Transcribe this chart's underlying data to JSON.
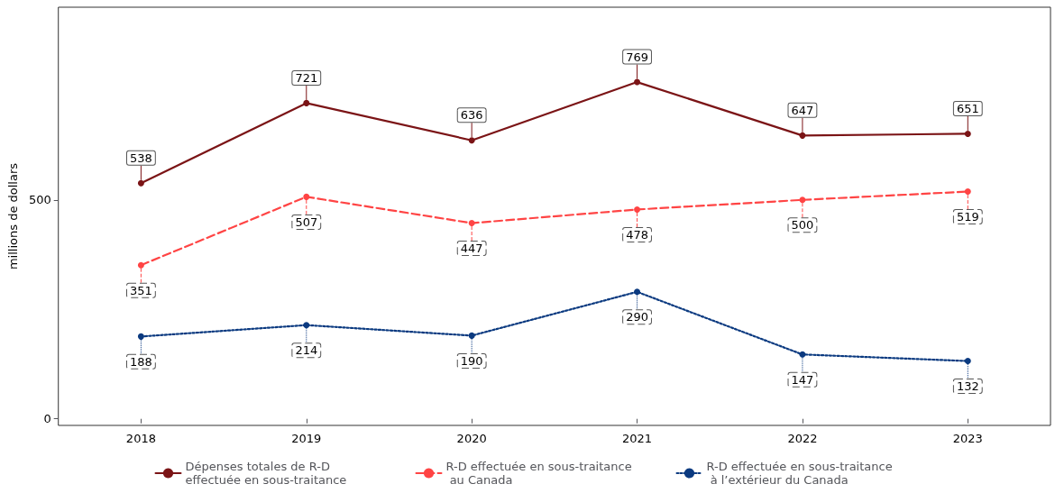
{
  "chart_data": {
    "type": "line",
    "ylabel": "millions de dollars",
    "categories": [
      "2018",
      "2019",
      "2020",
      "2021",
      "2022",
      "2023"
    ],
    "series": [
      {
        "name": "Dépenses totales de R-D effectuée en sous-traitance",
        "color": "#7b1416",
        "line_style": "solid",
        "values": [
          538,
          721,
          636,
          769,
          647,
          651
        ]
      },
      {
        "name": "R-D effectuée en sous-traitance au Canada",
        "color": "#ff4444",
        "line_style": "dashed",
        "values": [
          351,
          507,
          447,
          478,
          500,
          519
        ]
      },
      {
        "name": "R-D effectuée en sous-traitance à l’extérieur du Canada",
        "color": "#0b3a80",
        "line_style": "dotted",
        "values": [
          188,
          214,
          190,
          290,
          147,
          132
        ]
      }
    ],
    "ylim": [
      -15,
      940
    ],
    "yticks": [
      0,
      500
    ],
    "grid": false,
    "legend": "bottom",
    "marker": "circle",
    "data_labels": true
  }
}
